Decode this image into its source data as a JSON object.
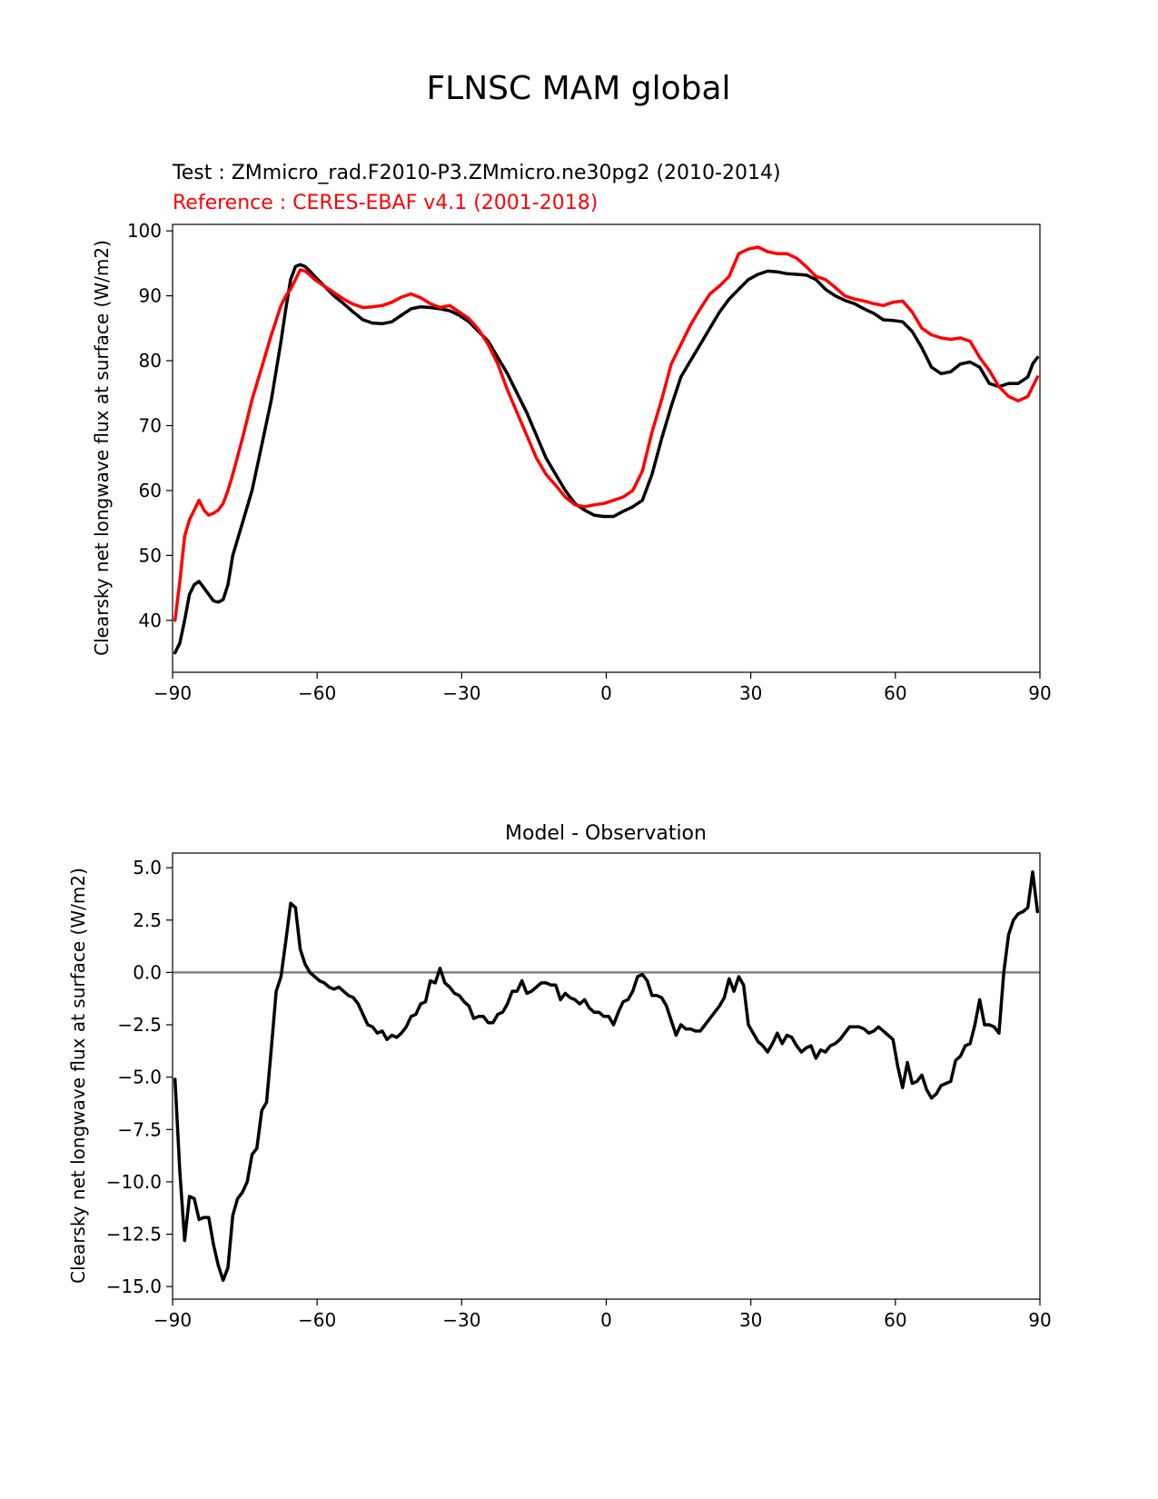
{
  "figure": {
    "title": "FLNSC MAM global"
  },
  "chart_data": [
    {
      "type": "line",
      "title": "",
      "subtitle_test": "Test : ZMmicro_rad.F2010-P3.ZMmicro.ne30pg2 (2010-2014)",
      "subtitle_reference": "Reference : CERES-EBAF v4.1 (2001-2018)",
      "xlabel": "",
      "ylabel": "Clearsky net longwave flux at surface (W/m2)",
      "xlim": [
        -90,
        90
      ],
      "ylim": [
        32,
        101
      ],
      "xticks": [
        -90,
        -60,
        -30,
        0,
        30,
        60,
        90
      ],
      "xtick_labels": [
        "−90",
        "−60",
        "−30",
        "0",
        "30",
        "60",
        "90"
      ],
      "yticks": [
        40,
        50,
        60,
        70,
        80,
        90,
        100
      ],
      "ytick_labels": [
        "40",
        "50",
        "60",
        "70",
        "80",
        "90",
        "100"
      ],
      "grid": false,
      "series": [
        {
          "color": "#000000",
          "x": [
            -89.5,
            -88.5,
            -87.5,
            -86.5,
            -85.5,
            -84.5,
            -83.5,
            -82.5,
            -81.5,
            -80.5,
            -79.5,
            -78.5,
            -77.5,
            -75.5,
            -73.5,
            -71.5,
            -69.5,
            -67.5,
            -66.5,
            -65.5,
            -64.5,
            -63.5,
            -62.5,
            -61.5,
            -60.5,
            -58.5,
            -56.5,
            -54.5,
            -52.5,
            -50.5,
            -48.5,
            -46.5,
            -44.5,
            -42.5,
            -40.5,
            -38.5,
            -36.5,
            -34.5,
            -32.5,
            -30.5,
            -28.5,
            -26.5,
            -24.5,
            -22.5,
            -20.5,
            -18.5,
            -16.5,
            -14.5,
            -12.5,
            -10.5,
            -8.5,
            -6.5,
            -4.5,
            -2.5,
            -0.5,
            1.5,
            3.5,
            5.5,
            7.5,
            9.5,
            11.5,
            13.5,
            15.5,
            17.5,
            19.5,
            21.5,
            23.5,
            25.5,
            27.5,
            29.5,
            31.5,
            33.5,
            35.5,
            37.5,
            39.5,
            41.5,
            43.5,
            45.5,
            47.5,
            49.5,
            51.5,
            53.5,
            55.5,
            57.5,
            59.5,
            61.5,
            63.5,
            65.5,
            67.5,
            69.5,
            71.5,
            73.5,
            75.5,
            77.5,
            79.5,
            81.5,
            83.5,
            85.5,
            87.5,
            88.5,
            89.5
          ],
          "values": [
            35,
            36.5,
            40,
            44,
            45.5,
            46,
            45,
            44,
            43,
            42.8,
            43.2,
            45.5,
            50,
            55,
            60,
            67,
            74,
            83,
            88,
            92.5,
            94.5,
            94.8,
            94.5,
            93.8,
            93,
            91.5,
            90,
            88.8,
            87.5,
            86.3,
            85.8,
            85.7,
            86,
            87,
            88,
            88.3,
            88.2,
            88,
            87.7,
            87,
            86,
            84.5,
            83,
            80.5,
            78,
            75,
            72,
            68.5,
            65,
            62.5,
            60,
            58,
            57,
            56.2,
            56,
            56,
            56.8,
            57.5,
            58.5,
            62.5,
            68,
            73,
            77.5,
            80,
            82.5,
            85,
            87.5,
            89.5,
            91,
            92.5,
            93.3,
            93.8,
            93.7,
            93.4,
            93.3,
            93.2,
            92.5,
            91,
            90,
            89.3,
            88.8,
            88,
            87.3,
            86.3,
            86.2,
            86,
            84.5,
            82,
            79,
            78,
            78.3,
            79.5,
            79.8,
            79,
            76.5,
            76,
            76.5,
            76.5,
            77.5,
            79.5,
            80.5
          ]
        },
        {
          "color": "#ff0000",
          "x": [
            -89.5,
            -88.5,
            -87.5,
            -86.5,
            -85.5,
            -84.5,
            -83.5,
            -82.5,
            -81.5,
            -80.5,
            -79.5,
            -78.5,
            -77.5,
            -75.5,
            -73.5,
            -71.5,
            -69.5,
            -67.5,
            -66.5,
            -65.5,
            -64.5,
            -63.5,
            -62.5,
            -61.5,
            -60.5,
            -58.5,
            -56.5,
            -54.5,
            -52.5,
            -50.5,
            -48.5,
            -46.5,
            -44.5,
            -42.5,
            -40.5,
            -38.5,
            -36.5,
            -34.5,
            -32.5,
            -30.5,
            -28.5,
            -26.5,
            -24.5,
            -22.5,
            -20.5,
            -18.5,
            -16.5,
            -14.5,
            -12.5,
            -10.5,
            -8.5,
            -6.5,
            -4.5,
            -2.5,
            -0.5,
            1.5,
            3.5,
            5.5,
            7.5,
            9.5,
            11.5,
            13.5,
            15.5,
            17.5,
            19.5,
            21.5,
            23.5,
            25.5,
            27.5,
            29.5,
            31.5,
            33.5,
            35.5,
            37.5,
            39.5,
            41.5,
            43.5,
            45.5,
            47.5,
            49.5,
            51.5,
            53.5,
            55.5,
            57.5,
            59.5,
            61.5,
            63.5,
            65.5,
            67.5,
            69.5,
            71.5,
            73.5,
            75.5,
            77.5,
            79.5,
            81.5,
            83.5,
            85.5,
            87.5,
            88.5,
            89.5
          ],
          "values": [
            40,
            46,
            53,
            55.5,
            57,
            58.5,
            57,
            56.2,
            56.5,
            57,
            58,
            60,
            62.5,
            68,
            74,
            79,
            84,
            88.5,
            90,
            91,
            92.5,
            94,
            93.8,
            93.2,
            92.5,
            91.5,
            90.5,
            89.5,
            88.7,
            88.2,
            88.3,
            88.5,
            89,
            89.8,
            90.3,
            89.7,
            88.8,
            88.2,
            88.5,
            87.5,
            86.5,
            84.8,
            82.5,
            79.5,
            75.5,
            72,
            68.5,
            65,
            62.5,
            60.8,
            59,
            57.8,
            57.5,
            57.8,
            58,
            58.5,
            59,
            60,
            63,
            69,
            74,
            79.5,
            82.5,
            85.5,
            88,
            90.3,
            91.5,
            93,
            96.5,
            97.2,
            97.5,
            96.8,
            96.5,
            96.5,
            95.8,
            94.5,
            93,
            92.5,
            91.3,
            90,
            89.5,
            89.2,
            88.8,
            88.5,
            89,
            89.2,
            87.5,
            85,
            84,
            83.5,
            83.3,
            83.5,
            83,
            80.5,
            78.5,
            76,
            74.5,
            73.8,
            74.5,
            76,
            77.5
          ]
        }
      ]
    },
    {
      "type": "line",
      "title": "Model - Observation",
      "xlabel": "",
      "ylabel": "Clearsky net longwave flux at surface (W/m2)",
      "xlim": [
        -90,
        90
      ],
      "ylim": [
        -15.6,
        5.7
      ],
      "xticks": [
        -90,
        -60,
        -30,
        0,
        30,
        60,
        90
      ],
      "xtick_labels": [
        "−90",
        "−60",
        "−30",
        "0",
        "30",
        "60",
        "90"
      ],
      "yticks": [
        5.0,
        2.5,
        0.0,
        -2.5,
        -5.0,
        -7.5,
        -10.0,
        -12.5,
        -15.0
      ],
      "ytick_labels": [
        "5.0",
        "2.5",
        "0.0",
        "−2.5",
        "−5.0",
        "−7.5",
        "−10.0",
        "−12.5",
        "−15.0"
      ],
      "zero_line": true,
      "grid": false,
      "series": [
        {
          "color": "#000000",
          "x": [
            -89.5,
            -88.5,
            -87.5,
            -86.5,
            -85.5,
            -84.5,
            -83.5,
            -82.5,
            -81.5,
            -80.5,
            -79.5,
            -78.5,
            -77.5,
            -76.5,
            -75.5,
            -74.5,
            -73.5,
            -72.5,
            -71.5,
            -70.5,
            -69.5,
            -68.5,
            -67.5,
            -66.5,
            -65.5,
            -64.5,
            -63.5,
            -62.5,
            -61.5,
            -60.5,
            -59.5,
            -58.5,
            -57.5,
            -56.5,
            -55.5,
            -54.5,
            -53.5,
            -52.5,
            -51.5,
            -50.5,
            -49.5,
            -48.5,
            -47.5,
            -46.5,
            -45.5,
            -44.5,
            -43.5,
            -42.5,
            -41.5,
            -40.5,
            -39.5,
            -38.5,
            -37.5,
            -36.5,
            -35.5,
            -34.5,
            -33.5,
            -32.5,
            -31.5,
            -30.5,
            -29.5,
            -28.5,
            -27.5,
            -26.5,
            -25.5,
            -24.5,
            -23.5,
            -22.5,
            -21.5,
            -20.5,
            -19.5,
            -18.5,
            -17.5,
            -16.5,
            -15.5,
            -14.5,
            -13.5,
            -12.5,
            -11.5,
            -10.5,
            -9.5,
            -8.5,
            -7.5,
            -6.5,
            -5.5,
            -4.5,
            -3.5,
            -2.5,
            -1.5,
            -0.5,
            0.5,
            1.5,
            2.5,
            3.5,
            4.5,
            5.5,
            6.5,
            7.5,
            8.5,
            9.5,
            10.5,
            11.5,
            12.5,
            13.5,
            14.5,
            15.5,
            16.5,
            17.5,
            18.5,
            19.5,
            20.5,
            21.5,
            22.5,
            23.5,
            24.5,
            25.5,
            26.5,
            27.5,
            28.5,
            29.5,
            30.5,
            31.5,
            32.5,
            33.5,
            34.5,
            35.5,
            36.5,
            37.5,
            38.5,
            39.5,
            40.5,
            41.5,
            42.5,
            43.5,
            44.5,
            45.5,
            46.5,
            47.5,
            48.5,
            49.5,
            50.5,
            51.5,
            52.5,
            53.5,
            54.5,
            55.5,
            56.5,
            57.5,
            58.5,
            59.5,
            60.5,
            61.5,
            62.5,
            63.5,
            64.5,
            65.5,
            66.5,
            67.5,
            68.5,
            69.5,
            70.5,
            71.5,
            72.5,
            73.5,
            74.5,
            75.5,
            76.5,
            77.5,
            78.5,
            79.5,
            80.5,
            81.5,
            82.5,
            83.5,
            84.5,
            85.5,
            86.5,
            87.5,
            88.5,
            89.5
          ],
          "values": [
            -5.1,
            -9.5,
            -12.8,
            -10.7,
            -10.8,
            -11.8,
            -11.7,
            -11.7,
            -13,
            -14,
            -14.7,
            -14.1,
            -11.6,
            -10.8,
            -10.5,
            -10,
            -8.7,
            -8.4,
            -6.6,
            -6.2,
            -3.6,
            -0.9,
            -0.2,
            1.5,
            3.3,
            3.1,
            1.1,
            0.4,
            0,
            -0.2,
            -0.4,
            -0.5,
            -0.7,
            -0.8,
            -0.7,
            -0.9,
            -1.1,
            -1.2,
            -1.5,
            -2,
            -2.5,
            -2.6,
            -2.9,
            -2.8,
            -3.2,
            -3.0,
            -3.1,
            -2.9,
            -2.6,
            -2.1,
            -2,
            -1.5,
            -1.4,
            -0.4,
            -0.5,
            0.2,
            -0.5,
            -0.7,
            -1,
            -1.1,
            -1.4,
            -1.6,
            -2.2,
            -2.1,
            -2.1,
            -2.4,
            -2.4,
            -2.0,
            -1.9,
            -1.5,
            -0.9,
            -0.9,
            -0.4,
            -1,
            -0.9,
            -0.7,
            -0.5,
            -0.5,
            -0.6,
            -0.6,
            -1.3,
            -1.0,
            -1.2,
            -1.3,
            -1.5,
            -1.3,
            -1.7,
            -1.9,
            -1.9,
            -2.1,
            -2.1,
            -2.5,
            -1.9,
            -1.4,
            -1.3,
            -0.9,
            -0.2,
            -0.1,
            -0.4,
            -1.1,
            -1.1,
            -1.2,
            -1.6,
            -2.3,
            -3.0,
            -2.5,
            -2.7,
            -2.7,
            -2.8,
            -2.8,
            -2.5,
            -2.2,
            -1.9,
            -1.6,
            -1.2,
            -0.3,
            -0.9,
            -0.2,
            -0.6,
            -2.5,
            -2.9,
            -3.3,
            -3.5,
            -3.8,
            -3.4,
            -2.9,
            -3.4,
            -3.0,
            -3.1,
            -3.5,
            -3.8,
            -3.6,
            -3.5,
            -4.1,
            -3.7,
            -3.8,
            -3.5,
            -3.4,
            -3.2,
            -2.9,
            -2.6,
            -2.6,
            -2.6,
            -2.7,
            -2.9,
            -2.8,
            -2.6,
            -2.8,
            -3.0,
            -3.2,
            -4.5,
            -5.5,
            -4.3,
            -5.3,
            -5.2,
            -4.9,
            -5.6,
            -6.0,
            -5.8,
            -5.4,
            -5.3,
            -5.2,
            -4.2,
            -4.0,
            -3.5,
            -3.4,
            -2.5,
            -1.3,
            -2.5,
            -2.5,
            -2.6,
            -2.9,
            0,
            1.8,
            2.5,
            2.8,
            2.9,
            3.1,
            4.8,
            2.9
          ]
        }
      ]
    }
  ]
}
